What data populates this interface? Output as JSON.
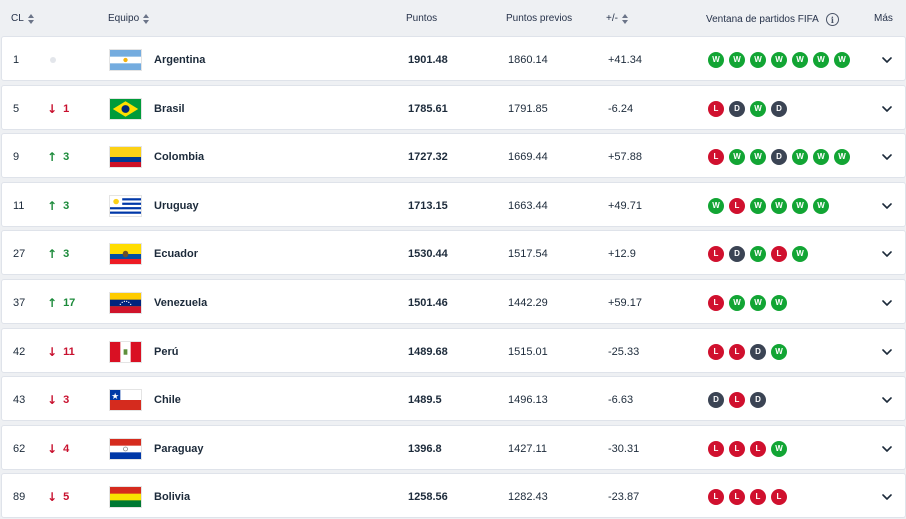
{
  "columns": {
    "rank": "CL",
    "team": "Equipo",
    "points": "Puntos",
    "previous": "Puntos previos",
    "diff": "+/-",
    "window": "Ventana de partidos FIFA",
    "more": "Más"
  },
  "rows": [
    {
      "rank": "1",
      "move": "",
      "dir": "none",
      "team": "Argentina",
      "flag": "argentina",
      "points": "1901.48",
      "prev": "1860.14",
      "diff": "+41.34",
      "form": [
        "W",
        "W",
        "W",
        "W",
        "W",
        "W",
        "W"
      ]
    },
    {
      "rank": "5",
      "move": "1",
      "dir": "down",
      "team": "Brasil",
      "flag": "brasil",
      "points": "1785.61",
      "prev": "1791.85",
      "diff": "-6.24",
      "form": [
        "L",
        "D",
        "W",
        "D"
      ]
    },
    {
      "rank": "9",
      "move": "3",
      "dir": "up",
      "team": "Colombia",
      "flag": "colombia",
      "points": "1727.32",
      "prev": "1669.44",
      "diff": "+57.88",
      "form": [
        "L",
        "W",
        "W",
        "D",
        "W",
        "W",
        "W"
      ]
    },
    {
      "rank": "11",
      "move": "3",
      "dir": "up",
      "team": "Uruguay",
      "flag": "uruguay",
      "points": "1713.15",
      "prev": "1663.44",
      "diff": "+49.71",
      "form": [
        "W",
        "L",
        "W",
        "W",
        "W",
        "W"
      ]
    },
    {
      "rank": "27",
      "move": "3",
      "dir": "up",
      "team": "Ecuador",
      "flag": "ecuador",
      "points": "1530.44",
      "prev": "1517.54",
      "diff": "+12.9",
      "form": [
        "L",
        "D",
        "W",
        "L",
        "W"
      ]
    },
    {
      "rank": "37",
      "move": "17",
      "dir": "up",
      "team": "Venezuela",
      "flag": "venezuela",
      "points": "1501.46",
      "prev": "1442.29",
      "diff": "+59.17",
      "form": [
        "L",
        "W",
        "W",
        "W"
      ]
    },
    {
      "rank": "42",
      "move": "11",
      "dir": "down",
      "team": "Perú",
      "flag": "peru",
      "points": "1489.68",
      "prev": "1515.01",
      "diff": "-25.33",
      "form": [
        "L",
        "L",
        "D",
        "W"
      ]
    },
    {
      "rank": "43",
      "move": "3",
      "dir": "down",
      "team": "Chile",
      "flag": "chile",
      "points": "1489.5",
      "prev": "1496.13",
      "diff": "-6.63",
      "form": [
        "D",
        "L",
        "D"
      ]
    },
    {
      "rank": "62",
      "move": "4",
      "dir": "down",
      "team": "Paraguay",
      "flag": "paraguay",
      "points": "1396.8",
      "prev": "1427.11",
      "diff": "-30.31",
      "form": [
        "L",
        "L",
        "L",
        "W"
      ]
    },
    {
      "rank": "89",
      "move": "5",
      "dir": "down",
      "team": "Bolivia",
      "flag": "bolivia",
      "points": "1258.56",
      "prev": "1282.43",
      "diff": "-23.87",
      "form": [
        "L",
        "L",
        "L",
        "L"
      ]
    }
  ],
  "icons": {
    "sort": "sort-icon",
    "info": "info-icon",
    "up": "arrow-up-icon",
    "down": "arrow-down-icon",
    "expand": "chevron-down-icon"
  },
  "colors": {
    "win": "#12a534",
    "loss": "#d0102e",
    "draw": "#3b4454",
    "up": "#1b8a3a",
    "down": "#c8102e"
  }
}
